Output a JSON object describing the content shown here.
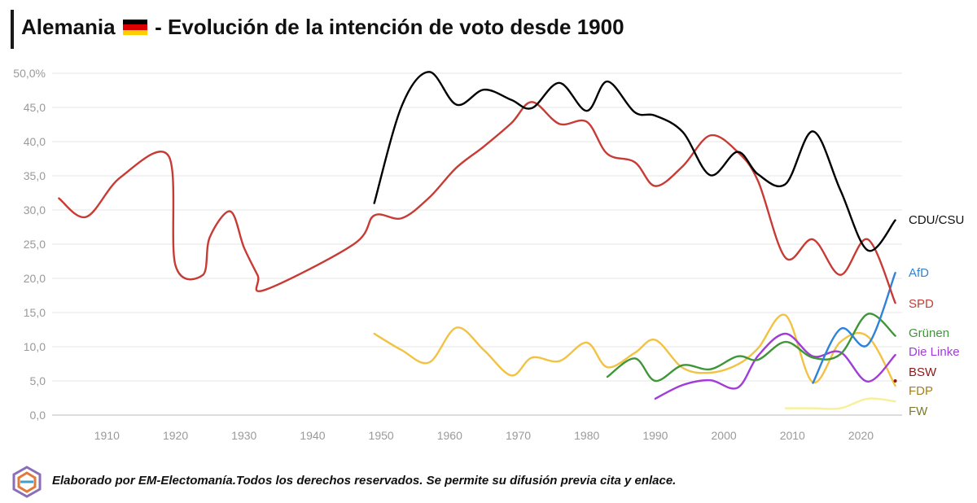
{
  "title": {
    "before": "Alemania",
    "after": "- Evolución de la intención de voto desde 1900",
    "flag_icon": "germany-flag-icon"
  },
  "footer": {
    "text": "Elaborado por EM-Electomanía.Todos los derechos reservados. Se permite su difusión previa cita y enlace.",
    "logo_icon": "em-electomania-logo-icon"
  },
  "chart_data": {
    "type": "line",
    "title": "Alemania - Evolución de la intención de voto desde 1900",
    "xlabel": "",
    "ylabel": "",
    "xlim": [
      1902,
      2026
    ],
    "ylim": [
      0,
      50
    ],
    "grid": true,
    "x_ticks": [
      "1910",
      "1920",
      "1930",
      "1940",
      "1950",
      "1960",
      "1970",
      "1980",
      "1990",
      "2000",
      "2010",
      "2020"
    ],
    "y_ticks": [
      "0,0",
      "5,0",
      "10,0",
      "15,0",
      "20,0",
      "25,0",
      "30,0",
      "35,0",
      "40,0",
      "45,0",
      "50,0%"
    ],
    "series": [
      {
        "name": "CDU/CSU",
        "color": "#000000",
        "x": [
          1949,
          1953,
          1957,
          1961,
          1965,
          1969,
          1972,
          1976,
          1980,
          1983,
          1987,
          1990,
          1994,
          1998,
          2002,
          2005,
          2009,
          2013,
          2017,
          2021,
          2025
        ],
        "values": [
          31.0,
          45.2,
          50.2,
          45.4,
          47.6,
          46.1,
          44.9,
          48.6,
          44.5,
          48.8,
          44.3,
          43.8,
          41.4,
          35.1,
          38.5,
          35.2,
          33.8,
          41.5,
          32.9,
          24.1,
          28.5
        ]
      },
      {
        "name": "SPD",
        "color": "#c83b35",
        "x": [
          1903,
          1907,
          1912,
          1919,
          1920,
          1924,
          1925,
          1928,
          1930,
          1932,
          1933,
          1946,
          1949,
          1953,
          1957,
          1961,
          1965,
          1969,
          1972,
          1976,
          1980,
          1983,
          1987,
          1990,
          1994,
          1998,
          2002,
          2005,
          2009,
          2013,
          2017,
          2021,
          2025
        ],
        "values": [
          31.7,
          29.0,
          34.8,
          37.9,
          21.9,
          20.5,
          26.0,
          29.8,
          24.5,
          20.4,
          18.3,
          25.0,
          29.2,
          28.8,
          31.8,
          36.2,
          39.3,
          42.7,
          45.8,
          42.6,
          42.9,
          38.2,
          37.0,
          33.5,
          36.4,
          40.9,
          38.5,
          34.2,
          23.0,
          25.7,
          20.5,
          25.7,
          16.4
        ]
      },
      {
        "name": "AfD",
        "color": "#2f82d8",
        "x": [
          2013,
          2017,
          2021,
          2025
        ],
        "values": [
          4.7,
          12.6,
          10.3,
          20.8
        ]
      },
      {
        "name": "Grünen",
        "color": "#3f9638",
        "x": [
          1983,
          1987,
          1990,
          1994,
          1998,
          2002,
          2005,
          2009,
          2013,
          2017,
          2021,
          2025
        ],
        "values": [
          5.6,
          8.3,
          5.0,
          7.3,
          6.7,
          8.6,
          8.1,
          10.7,
          8.4,
          8.9,
          14.8,
          11.6
        ]
      },
      {
        "name": "Die Linke",
        "color": "#a03cd8",
        "x": [
          1990,
          1994,
          1998,
          2002,
          2005,
          2009,
          2013,
          2017,
          2021,
          2025
        ],
        "values": [
          2.4,
          4.4,
          5.1,
          4.0,
          8.7,
          11.9,
          8.6,
          9.2,
          4.9,
          8.8
        ]
      },
      {
        "name": "BSW",
        "color": "#8b1a1a",
        "x": [
          2025
        ],
        "values": [
          5.0
        ]
      },
      {
        "name": "FDP",
        "color": "#f2c242",
        "x": [
          1949,
          1953,
          1957,
          1961,
          1965,
          1969,
          1972,
          1976,
          1980,
          1983,
          1987,
          1990,
          1994,
          1998,
          2002,
          2005,
          2009,
          2013,
          2017,
          2021,
          2025
        ],
        "values": [
          11.9,
          9.5,
          7.7,
          12.8,
          9.5,
          5.8,
          8.4,
          7.9,
          10.6,
          7.0,
          9.1,
          11.0,
          6.9,
          6.2,
          7.4,
          9.8,
          14.6,
          4.8,
          10.7,
          11.5,
          4.3
        ]
      },
      {
        "name": "FW",
        "color": "#f7f096",
        "x": [
          2009,
          2013,
          2017,
          2021,
          2025
        ],
        "values": [
          1.0,
          1.0,
          1.0,
          2.4,
          2.0
        ]
      }
    ],
    "labels": [
      {
        "text": "CDU/CSU",
        "color": "#111111"
      },
      {
        "text": "AfD",
        "color": "#2f82d8"
      },
      {
        "text": "SPD",
        "color": "#c83b35"
      },
      {
        "text": "Grünen",
        "color": "#3f9638"
      },
      {
        "text": "Die Linke",
        "color": "#a03cd8"
      },
      {
        "text": "BSW",
        "color": "#8b1a1a"
      },
      {
        "text": "FDP",
        "color": "#a57f1a"
      },
      {
        "text": "FW",
        "color": "#7a7a2a"
      }
    ]
  }
}
